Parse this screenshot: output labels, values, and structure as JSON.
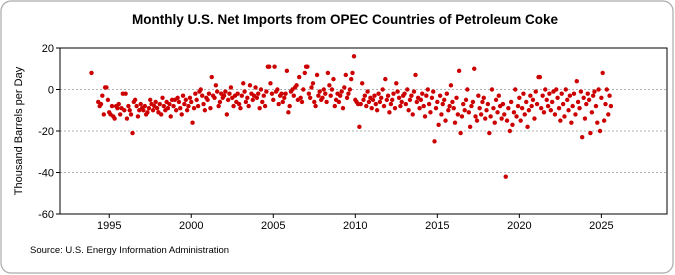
{
  "chart_data": {
    "type": "scatter",
    "title": "Monthly U.S. Net Imports from OPEC Countries of Petroleum Coke",
    "y_label": "Thousand Barrels per Day",
    "source": "Source: U.S. Energy Information Administration",
    "color": "#cc0000",
    "grid": true,
    "xlim": [
      1992,
      2029
    ],
    "xticks": [
      1995,
      2000,
      2005,
      2010,
      2015,
      2020,
      2025
    ],
    "ylim": [
      -60,
      20
    ],
    "yticks": [
      -60,
      -40,
      -20,
      0,
      20
    ],
    "x": [
      1993.92,
      1994.33,
      1994.42,
      1994.5,
      1994.58,
      1994.67,
      1994.75,
      1994.83,
      1994.92,
      1995,
      1995.08,
      1995.17,
      1995.25,
      1995.33,
      1995.42,
      1995.5,
      1995.58,
      1995.67,
      1995.75,
      1995.83,
      1995.92,
      1996,
      1996.08,
      1996.17,
      1996.25,
      1996.33,
      1996.42,
      1996.5,
      1996.58,
      1996.67,
      1996.75,
      1996.83,
      1996.92,
      1997,
      1997.08,
      1997.17,
      1997.25,
      1997.33,
      1997.42,
      1997.5,
      1997.58,
      1997.67,
      1997.75,
      1997.83,
      1997.92,
      1998,
      1998.08,
      1998.17,
      1998.25,
      1998.33,
      1998.42,
      1998.5,
      1998.58,
      1998.67,
      1998.75,
      1998.83,
      1998.92,
      1999,
      1999.08,
      1999.17,
      1999.25,
      1999.33,
      1999.42,
      1999.5,
      1999.58,
      1999.67,
      1999.75,
      1999.83,
      1999.92,
      2000,
      2000.08,
      2000.17,
      2000.25,
      2000.33,
      2000.42,
      2000.5,
      2000.58,
      2000.67,
      2000.75,
      2000.83,
      2000.92,
      2001,
      2001.08,
      2001.17,
      2001.25,
      2001.33,
      2001.42,
      2001.5,
      2001.58,
      2001.67,
      2001.75,
      2001.83,
      2001.92,
      2002,
      2002.08,
      2002.17,
      2002.25,
      2002.33,
      2002.42,
      2002.5,
      2002.58,
      2002.67,
      2002.75,
      2002.83,
      2002.92,
      2003,
      2003.08,
      2003.17,
      2003.25,
      2003.33,
      2003.42,
      2003.5,
      2003.58,
      2003.67,
      2003.75,
      2003.83,
      2003.92,
      2004,
      2004.08,
      2004.17,
      2004.25,
      2004.33,
      2004.42,
      2004.5,
      2004.58,
      2004.67,
      2004.75,
      2004.83,
      2004.92,
      2005,
      2005.08,
      2005.17,
      2005.25,
      2005.33,
      2005.42,
      2005.5,
      2005.58,
      2005.67,
      2005.75,
      2005.83,
      2005.92,
      2006,
      2006.08,
      2006.17,
      2006.25,
      2006.33,
      2006.42,
      2006.5,
      2006.58,
      2006.67,
      2006.75,
      2006.83,
      2006.92,
      2007,
      2007.08,
      2007.17,
      2007.25,
      2007.33,
      2007.42,
      2007.5,
      2007.58,
      2007.67,
      2007.75,
      2007.83,
      2007.92,
      2008,
      2008.08,
      2008.17,
      2008.25,
      2008.33,
      2008.42,
      2008.5,
      2008.58,
      2008.67,
      2008.75,
      2008.83,
      2008.92,
      2009,
      2009.08,
      2009.17,
      2009.25,
      2009.33,
      2009.42,
      2009.5,
      2009.58,
      2009.67,
      2009.75,
      2009.83,
      2009.92,
      2010,
      2010.08,
      2010.17,
      2010.25,
      2010.33,
      2010.42,
      2010.5,
      2010.58,
      2010.67,
      2010.75,
      2010.83,
      2010.92,
      2011,
      2011.08,
      2011.17,
      2011.25,
      2011.33,
      2011.42,
      2011.5,
      2011.58,
      2011.67,
      2011.75,
      2011.83,
      2011.92,
      2012,
      2012.08,
      2012.17,
      2012.25,
      2012.33,
      2012.42,
      2012.5,
      2012.58,
      2012.67,
      2012.75,
      2012.83,
      2012.92,
      2013,
      2013.08,
      2013.17,
      2013.25,
      2013.33,
      2013.42,
      2013.5,
      2013.58,
      2013.67,
      2013.75,
      2013.83,
      2013.92,
      2014,
      2014.08,
      2014.17,
      2014.25,
      2014.33,
      2014.42,
      2014.5,
      2014.58,
      2014.67,
      2014.75,
      2014.83,
      2014.92,
      2015,
      2015.08,
      2015.17,
      2015.25,
      2015.33,
      2015.42,
      2015.5,
      2015.58,
      2015.67,
      2015.75,
      2015.83,
      2015.92,
      2016,
      2016.08,
      2016.17,
      2016.25,
      2016.33,
      2016.42,
      2016.5,
      2016.58,
      2016.67,
      2016.75,
      2016.83,
      2016.92,
      2017,
      2017.08,
      2017.17,
      2017.25,
      2017.33,
      2017.42,
      2017.5,
      2017.58,
      2017.67,
      2017.75,
      2017.83,
      2017.92,
      2018,
      2018.08,
      2018.17,
      2018.25,
      2018.33,
      2018.42,
      2018.5,
      2018.58,
      2018.67,
      2018.75,
      2018.83,
      2018.92,
      2019,
      2019.08,
      2019.17,
      2019.25,
      2019.33,
      2019.42,
      2019.5,
      2019.58,
      2019.67,
      2019.75,
      2019.83,
      2019.92,
      2020,
      2020.08,
      2020.17,
      2020.25,
      2020.33,
      2020.42,
      2020.5,
      2020.58,
      2020.67,
      2020.75,
      2020.83,
      2020.92,
      2021,
      2021.08,
      2021.17,
      2021.25,
      2021.33,
      2021.42,
      2021.5,
      2021.58,
      2021.67,
      2021.75,
      2021.83,
      2021.92,
      2022,
      2022.08,
      2022.17,
      2022.25,
      2022.33,
      2022.42,
      2022.5,
      2022.58,
      2022.67,
      2022.75,
      2022.83,
      2022.92,
      2023,
      2023.08,
      2023.17,
      2023.25,
      2023.33,
      2023.42,
      2023.5,
      2023.58,
      2023.67,
      2023.75,
      2023.83,
      2023.92,
      2024,
      2024.08,
      2024.17,
      2024.25,
      2024.33,
      2024.42,
      2024.5,
      2024.58,
      2024.67,
      2024.75,
      2024.83,
      2024.92,
      2025,
      2025.08,
      2025.17,
      2025.25,
      2025.33,
      2025.42,
      2025.5,
      2025.58
    ],
    "values": [
      8,
      -6,
      -8,
      -7,
      -3,
      -12,
      1,
      1,
      -5,
      -11,
      -12,
      -8,
      -13,
      -14,
      -8,
      -9,
      -7,
      -12,
      -9,
      -2,
      -10,
      -2,
      -14,
      -8,
      -10,
      -12,
      -21,
      -6,
      -5,
      -8,
      -13,
      -10,
      -7,
      -9,
      -10,
      -8,
      -12,
      -11,
      -9,
      -5,
      -7,
      -10,
      -8,
      -6,
      -9,
      -11,
      -7,
      -12,
      -4,
      -8,
      -10,
      -6,
      -9,
      -7,
      -13,
      -5,
      -8,
      -5,
      -10,
      -4,
      -6,
      -9,
      -12,
      -3,
      -7,
      -5,
      -10,
      -8,
      -4,
      -6,
      -16,
      -9,
      -2,
      -5,
      -8,
      -1,
      0,
      -3,
      -7,
      -10,
      -4,
      -5,
      -2,
      -9,
      6,
      -3,
      -4,
      2,
      -1,
      -8,
      -6,
      -2,
      -4,
      -3,
      -1,
      -12,
      -5,
      -2,
      1,
      -4,
      -8,
      -3,
      -6,
      -2,
      -7,
      -9,
      -3,
      3,
      -1,
      -6,
      -4,
      -8,
      2,
      -2,
      -5,
      -3,
      1,
      -4,
      -2,
      -9,
      0,
      -6,
      -3,
      -8,
      -1,
      11,
      11,
      3,
      -2,
      -5,
      11,
      -1,
      0,
      -7,
      -3,
      -2,
      -6,
      -4,
      -2,
      9,
      -11,
      -8,
      -1,
      0,
      -3,
      1,
      2,
      -5,
      6,
      -4,
      -6,
      0,
      8,
      11,
      11,
      -2,
      -4,
      1,
      3,
      -6,
      -8,
      7,
      -3,
      -1,
      -5,
      -4,
      0,
      -2,
      -6,
      8,
      2,
      -3,
      0,
      5,
      -8,
      -5,
      -2,
      -6,
      -3,
      -1,
      -9,
      1,
      7,
      -4,
      -2,
      0,
      5,
      8,
      16,
      -5,
      -6,
      -7,
      -18,
      -7,
      3,
      -5,
      -3,
      -8,
      -1,
      -6,
      -4,
      -9,
      -5,
      -3,
      -7,
      -10,
      -2,
      -6,
      -4,
      0,
      -8,
      5,
      -5,
      -3,
      -11,
      -7,
      -5,
      -2,
      -9,
      3,
      -1,
      -4,
      -8,
      -6,
      -3,
      -2,
      -7,
      0,
      -10,
      -5,
      -3,
      -12,
      -1,
      7,
      -6,
      -4,
      -9,
      -5,
      -2,
      -8,
      -13,
      -3,
      0,
      -7,
      -11,
      -4,
      -1,
      -25,
      -9,
      -6,
      -17,
      -3,
      -12,
      -7,
      -5,
      -15,
      -2,
      -10,
      -8,
      2,
      -6,
      -9,
      -16,
      -4,
      -12,
      9,
      -21,
      -13,
      -7,
      -10,
      -5,
      0,
      -11,
      -18,
      -8,
      -6,
      10,
      -13,
      -15,
      -3,
      -9,
      -12,
      -6,
      -4,
      -14,
      -10,
      -7,
      -21,
      -13,
      0,
      -9,
      -16,
      -5,
      -11,
      -3,
      -8,
      -14,
      -7,
      -12,
      -42,
      -15,
      -9,
      -20,
      -6,
      -17,
      -11,
      0,
      -13,
      -8,
      -4,
      -15,
      -9,
      -2,
      -12,
      -6,
      -18,
      -10,
      -3,
      -8,
      -5,
      -14,
      -1,
      -7,
      6,
      6,
      -9,
      -3,
      -11,
      0,
      -5,
      -8,
      -2,
      -10,
      -6,
      -1,
      -12,
      0,
      -4,
      -9,
      -15,
      -2,
      -7,
      -13,
      0,
      -5,
      -10,
      -3,
      -16,
      -8,
      -2,
      -12,
      4,
      -6,
      -9,
      -1,
      -23,
      -4,
      -14,
      -7,
      -2,
      -5,
      -21,
      -11,
      -3,
      -1,
      -8,
      -16,
      0,
      -20,
      -4,
      8,
      -15,
      -7,
      0,
      -12,
      -3,
      -8
    ]
  }
}
